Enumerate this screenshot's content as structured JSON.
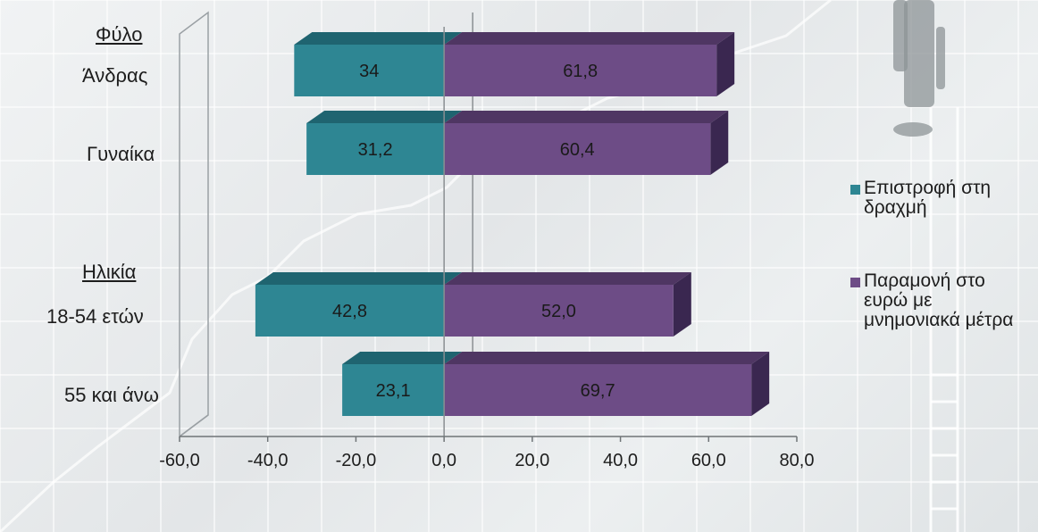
{
  "chart_data": {
    "type": "bar",
    "orientation": "horizontal",
    "style": "3d-diverging",
    "groups": [
      {
        "label": "Φύλο",
        "categories": [
          "Άνδρας",
          "Γυναίκα"
        ]
      },
      {
        "label": "Ηλικία",
        "categories": [
          "18-54 ετών",
          "55 και άνω"
        ]
      }
    ],
    "categories": [
      "Άνδρας",
      "Γυναίκα",
      "18-54 ετών",
      "55 και άνω"
    ],
    "series": [
      {
        "name": "Επιστροφή στη δραχμή",
        "values": [
          34,
          31.2,
          42.8,
          23.1
        ],
        "labels": [
          "34",
          "31,2",
          "42,8",
          "23,1"
        ],
        "direction": "negative",
        "color": "#2e8693"
      },
      {
        "name": "Παραμονή στο ευρώ με μνημονιακά μέτρα",
        "values": [
          61.8,
          60.4,
          52.0,
          69.7
        ],
        "labels": [
          "61,8",
          "60,4",
          "52,0",
          "69,7"
        ],
        "direction": "positive",
        "color": "#6d4c86"
      }
    ],
    "xlim": [
      -60,
      80
    ],
    "xticks": [
      -60,
      -40,
      -20,
      0,
      20,
      40,
      60,
      80
    ],
    "xtick_labels": [
      "-60,0",
      "-40,0",
      "-20,0",
      "0,0",
      "20,0",
      "40,0",
      "60,0",
      "80,0"
    ],
    "grid": true,
    "legend_position": "right",
    "title": "",
    "xlabel": "",
    "ylabel": ""
  },
  "legend": {
    "items": [
      {
        "lines": [
          "Επιστροφή στη",
          "δραχμή"
        ],
        "color": "#2e8693"
      },
      {
        "lines": [
          "Παραμονή στο",
          "ευρώ με",
          "μνημονιακά μέτρα"
        ],
        "color": "#6d4c86"
      }
    ]
  }
}
